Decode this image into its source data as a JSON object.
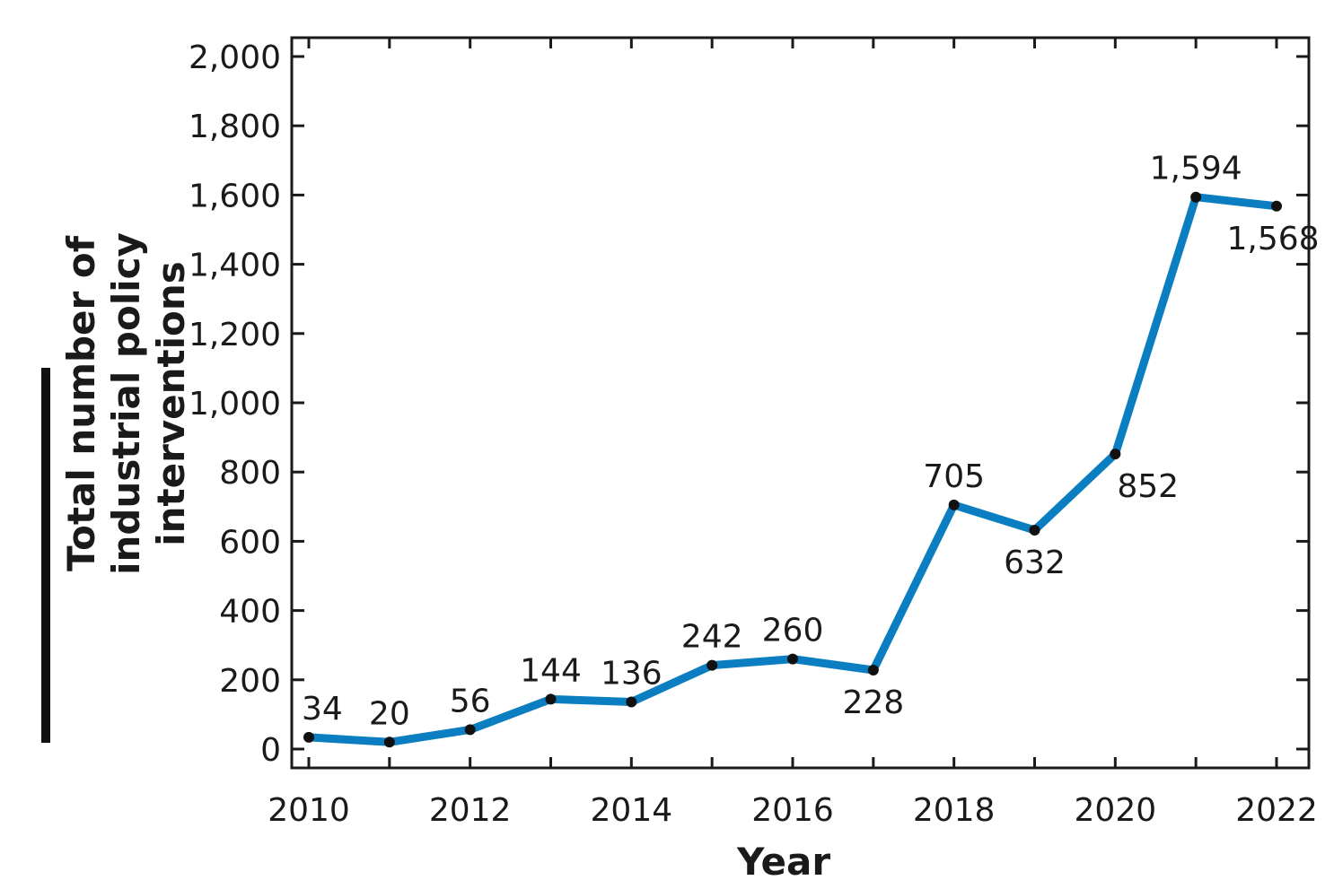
{
  "chart_data": {
    "type": "line",
    "xlabel": "Year",
    "ylabel_lines": [
      "Total number of",
      "industrial policy",
      "interventions"
    ],
    "x": [
      2010,
      2011,
      2012,
      2013,
      2014,
      2015,
      2016,
      2017,
      2018,
      2019,
      2020,
      2021,
      2022
    ],
    "series": [
      {
        "values": [
          34,
          20,
          56,
          144,
          136,
          242,
          260,
          228,
          705,
          632,
          852,
          1594,
          1568
        ],
        "color": "#0a7ec0"
      }
    ],
    "data_labels": [
      "34",
      "20",
      "56",
      "144",
      "136",
      "242",
      "260",
      "228",
      "705",
      "632",
      "852",
      "1,594",
      "1,568"
    ],
    "x_ticks": [
      2010,
      2012,
      2014,
      2016,
      2018,
      2020,
      2022
    ],
    "x_tick_labels": [
      "2010",
      "2012",
      "2014",
      "2016",
      "2018",
      "2020",
      "2022"
    ],
    "y_ticks": [
      0,
      200,
      400,
      600,
      800,
      1000,
      1200,
      1400,
      1600,
      1800,
      2000
    ],
    "y_tick_labels": [
      "0",
      "200",
      "400",
      "600",
      "800",
      "1,000",
      "1,200",
      "1,400",
      "1,600",
      "1,800",
      "2,000"
    ],
    "xlim": [
      2010,
      2022
    ],
    "ylim": [
      0,
      2000
    ],
    "grid": false,
    "legend": "none"
  }
}
